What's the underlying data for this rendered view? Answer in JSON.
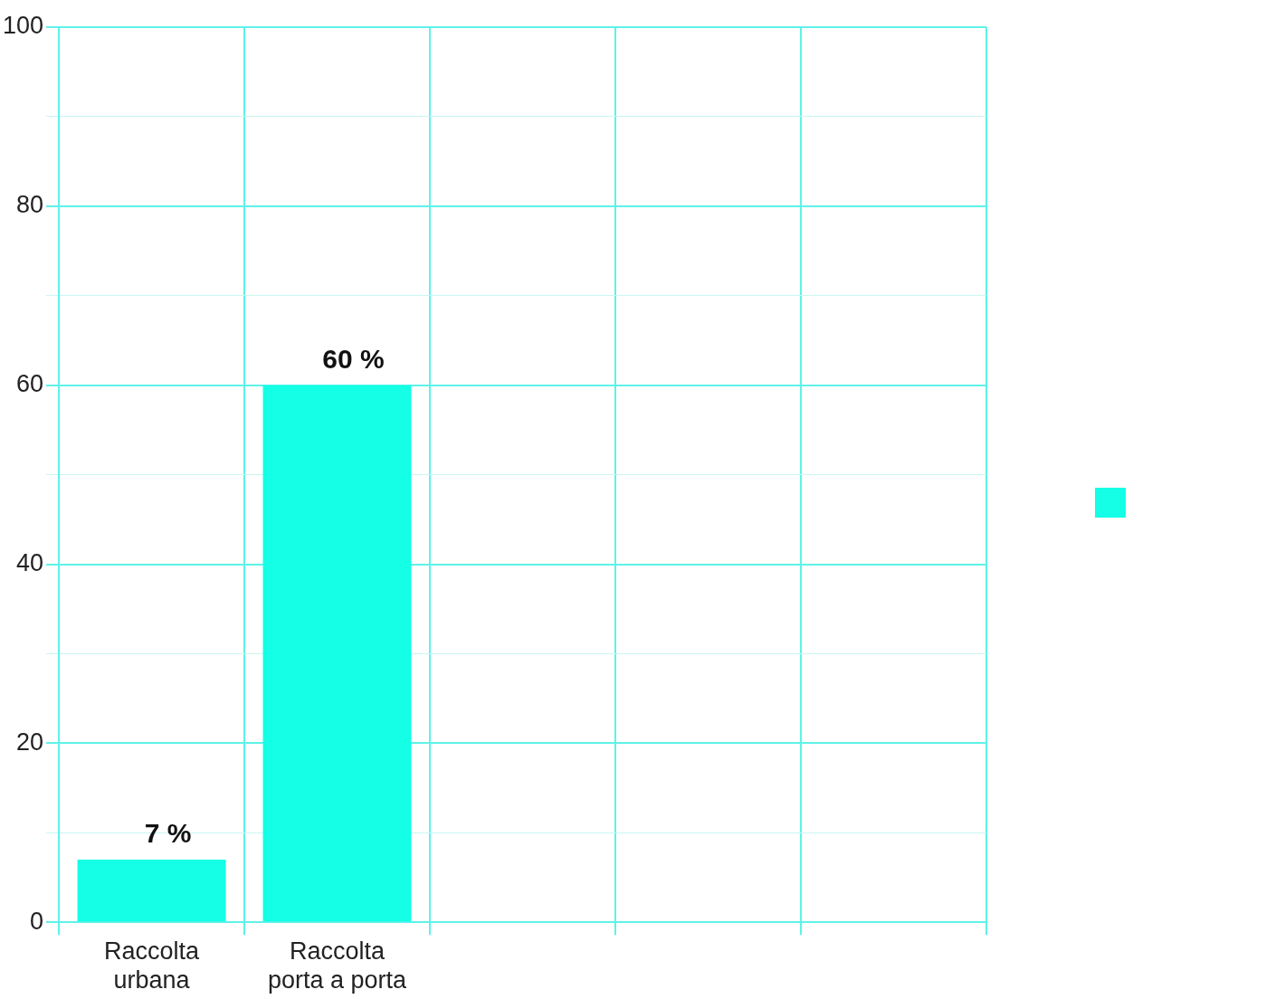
{
  "chart_data": {
    "type": "bar",
    "categories": [
      "Raccolta urbana",
      "Raccolta porta a porta",
      null,
      null,
      null
    ],
    "values": [
      7,
      60,
      null,
      null,
      null
    ],
    "color": "#14ffe6",
    "value_labels": [
      "7 %",
      "60 %",
      null,
      null,
      null
    ],
    "ylim": [
      0,
      100
    ],
    "yticks": [
      0,
      {
        "value": 10,
        "label": null
      },
      20,
      {
        "value": 30,
        "label": null
      },
      40,
      {
        "value": 50,
        "label": null
      },
      60,
      {
        "value": 70,
        "label": null
      },
      80,
      {
        "value": 90,
        "label": null
      },
      100
    ],
    "grid": true
  }
}
